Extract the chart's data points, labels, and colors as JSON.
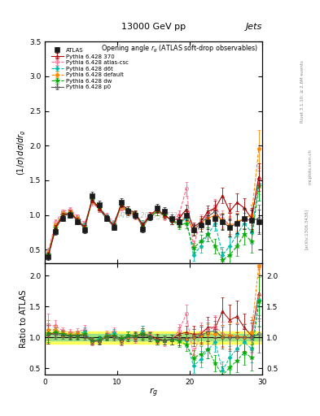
{
  "title_center": "13000 GeV pp",
  "title_right": "Jets",
  "plot_title": "Opening angle $r_g$ (ATLAS soft-drop observables)",
  "xlabel": "$r_g$",
  "ylabel_main": "$(1/\\sigma)\\,d\\sigma/dr_g$",
  "ylabel_ratio": "Ratio to ATLAS",
  "watermark": "ATLAS_2019_I1772062",
  "rivet_text": "Rivet 3.1.10; ≥ 2.6M events",
  "arxiv_text": "[arXiv:1306.3436]",
  "mcplots_text": "mcplots.cern.ch",
  "x_data": [
    0.5,
    1.5,
    2.5,
    3.5,
    4.5,
    5.5,
    6.5,
    7.5,
    8.5,
    9.5,
    10.5,
    11.5,
    12.5,
    13.5,
    14.5,
    15.5,
    16.5,
    17.5,
    18.5,
    19.5,
    20.5,
    21.5,
    22.5,
    23.5,
    24.5,
    25.5,
    26.5,
    27.5,
    28.5,
    29.5
  ],
  "atlas_y": [
    0.4,
    0.76,
    0.95,
    1.0,
    0.9,
    0.78,
    1.28,
    1.15,
    0.95,
    0.82,
    1.18,
    1.05,
    1.0,
    0.8,
    0.97,
    1.1,
    1.05,
    0.95,
    0.9,
    1.0,
    0.78,
    0.85,
    0.9,
    0.95,
    0.9,
    0.82,
    0.88,
    0.95,
    0.92,
    0.9
  ],
  "atlas_yerr": [
    0.05,
    0.05,
    0.04,
    0.04,
    0.04,
    0.04,
    0.06,
    0.05,
    0.04,
    0.04,
    0.06,
    0.05,
    0.05,
    0.05,
    0.05,
    0.06,
    0.06,
    0.06,
    0.07,
    0.08,
    0.08,
    0.09,
    0.1,
    0.11,
    0.12,
    0.13,
    0.14,
    0.15,
    0.16,
    0.18
  ],
  "py370_y": [
    0.42,
    0.82,
    1.0,
    1.03,
    0.93,
    0.82,
    1.22,
    1.1,
    0.97,
    0.85,
    1.15,
    1.08,
    1.03,
    0.85,
    1.0,
    1.08,
    1.0,
    0.92,
    0.95,
    1.08,
    0.82,
    0.9,
    1.05,
    1.1,
    1.28,
    1.05,
    1.18,
    1.1,
    0.95,
    1.55
  ],
  "py370_yerr": [
    0.03,
    0.03,
    0.03,
    0.03,
    0.03,
    0.03,
    0.04,
    0.04,
    0.03,
    0.03,
    0.04,
    0.04,
    0.04,
    0.04,
    0.04,
    0.05,
    0.05,
    0.05,
    0.06,
    0.07,
    0.07,
    0.08,
    0.09,
    0.1,
    0.11,
    0.12,
    0.13,
    0.14,
    0.15,
    0.2
  ],
  "pyatlas_y": [
    0.48,
    0.9,
    1.05,
    1.08,
    0.98,
    0.88,
    1.18,
    1.08,
    1.0,
    0.9,
    1.1,
    1.05,
    0.98,
    0.88,
    1.0,
    1.05,
    0.98,
    0.92,
    1.0,
    1.38,
    0.55,
    0.92,
    1.0,
    1.12,
    0.95,
    0.85,
    0.88,
    0.95,
    0.9,
    1.52
  ],
  "pyatlas_yerr": [
    0.04,
    0.04,
    0.03,
    0.03,
    0.03,
    0.03,
    0.04,
    0.04,
    0.03,
    0.03,
    0.04,
    0.04,
    0.04,
    0.04,
    0.04,
    0.05,
    0.05,
    0.05,
    0.06,
    0.1,
    0.08,
    0.09,
    0.1,
    0.11,
    0.12,
    0.13,
    0.14,
    0.15,
    0.16,
    0.22
  ],
  "pyd6t_y": [
    0.45,
    0.85,
    1.02,
    1.05,
    0.95,
    0.85,
    1.2,
    1.12,
    0.98,
    0.88,
    1.12,
    1.08,
    1.0,
    0.88,
    0.98,
    1.05,
    1.0,
    0.92,
    0.88,
    0.95,
    0.42,
    0.55,
    0.72,
    0.88,
    0.42,
    0.55,
    0.72,
    0.88,
    0.75,
    1.45
  ],
  "pyd6t_yerr": [
    0.03,
    0.03,
    0.03,
    0.03,
    0.03,
    0.03,
    0.04,
    0.04,
    0.03,
    0.03,
    0.04,
    0.04,
    0.04,
    0.04,
    0.04,
    0.05,
    0.05,
    0.05,
    0.06,
    0.07,
    0.08,
    0.09,
    0.1,
    0.11,
    0.12,
    0.13,
    0.14,
    0.15,
    0.16,
    0.25
  ],
  "pydefault_y": [
    0.45,
    0.85,
    1.02,
    1.05,
    0.95,
    0.82,
    1.2,
    1.1,
    0.97,
    0.85,
    1.12,
    1.05,
    1.0,
    0.85,
    0.98,
    1.05,
    1.0,
    0.92,
    0.88,
    0.98,
    0.78,
    0.88,
    0.95,
    1.0,
    0.92,
    0.85,
    0.9,
    0.95,
    1.0,
    1.95
  ],
  "pydefault_yerr": [
    0.03,
    0.03,
    0.03,
    0.03,
    0.03,
    0.03,
    0.04,
    0.04,
    0.03,
    0.03,
    0.04,
    0.04,
    0.04,
    0.04,
    0.04,
    0.05,
    0.05,
    0.05,
    0.06,
    0.07,
    0.07,
    0.08,
    0.09,
    0.1,
    0.11,
    0.12,
    0.13,
    0.14,
    0.15,
    0.28
  ],
  "pydw_y": [
    0.43,
    0.82,
    1.0,
    1.03,
    0.93,
    0.82,
    1.22,
    1.1,
    0.97,
    0.85,
    1.15,
    1.08,
    1.02,
    0.85,
    0.98,
    1.05,
    1.0,
    0.92,
    0.85,
    0.88,
    0.52,
    0.62,
    0.72,
    0.55,
    0.35,
    0.42,
    0.55,
    0.72,
    0.62,
    1.42
  ],
  "pydw_yerr": [
    0.03,
    0.03,
    0.03,
    0.03,
    0.03,
    0.03,
    0.04,
    0.04,
    0.03,
    0.03,
    0.04,
    0.04,
    0.04,
    0.04,
    0.04,
    0.05,
    0.05,
    0.05,
    0.06,
    0.07,
    0.08,
    0.09,
    0.1,
    0.11,
    0.12,
    0.13,
    0.14,
    0.15,
    0.16,
    0.22
  ],
  "pyp0_y": [
    0.42,
    0.8,
    0.98,
    1.02,
    0.92,
    0.8,
    1.2,
    1.08,
    0.95,
    0.83,
    1.12,
    1.05,
    1.0,
    0.83,
    0.97,
    1.05,
    1.0,
    0.92,
    0.88,
    0.98,
    0.78,
    0.88,
    0.98,
    1.05,
    0.9,
    0.82,
    0.88,
    0.95,
    0.92,
    0.95
  ],
  "pyp0_yerr": [
    0.03,
    0.03,
    0.03,
    0.03,
    0.03,
    0.03,
    0.04,
    0.04,
    0.03,
    0.03,
    0.04,
    0.04,
    0.04,
    0.04,
    0.04,
    0.05,
    0.05,
    0.05,
    0.06,
    0.07,
    0.07,
    0.08,
    0.09,
    0.1,
    0.11,
    0.12,
    0.13,
    0.14,
    0.15,
    0.2
  ],
  "atlas_band_green": 0.05,
  "atlas_band_yellow": 0.1,
  "ylim_main": [
    0.3,
    3.5
  ],
  "ylim_ratio": [
    0.4,
    2.2
  ],
  "xlim": [
    0,
    30
  ],
  "xticks": [
    0,
    10,
    20,
    30
  ],
  "yticks_main": [
    0.5,
    1.0,
    1.5,
    2.0,
    2.5,
    3.0,
    3.5
  ],
  "yticks_ratio": [
    0.5,
    1.0,
    1.5,
    2.0
  ],
  "colors": {
    "atlas": "#1a1a1a",
    "py370": "#aa0000",
    "pyatlas": "#ff6688",
    "pyd6t": "#00bbaa",
    "pydefault": "#ff8800",
    "pydw": "#00aa00",
    "pyp0": "#555555"
  },
  "legend_labels": [
    "ATLAS",
    "Pythia 6.428 370",
    "Pythia 6.428 atlas-csc",
    "Pythia 6.428 d6t",
    "Pythia 6.428 default",
    "Pythia 6.428 dw",
    "Pythia 6.428 p0"
  ]
}
